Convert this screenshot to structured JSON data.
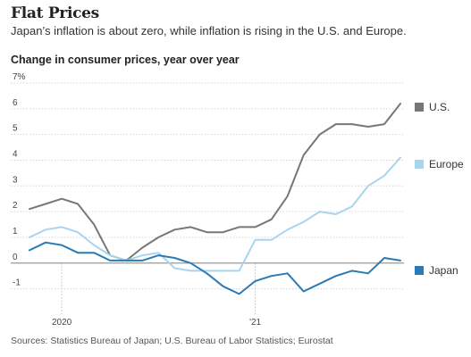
{
  "header": {
    "title": "Flat Prices",
    "subtitle": "Japan’s inflation is about zero, while inflation is rising in the U.S. and Europe.",
    "chart_heading": "Change in consumer prices, year over year"
  },
  "footer": {
    "source": "Sources: Statistics Bureau of Japan; U.S. Bureau of Labor Statistics; Eurostat"
  },
  "colors": {
    "us": "#777777",
    "europe": "#a9d4ef",
    "japan": "#2a7ab3",
    "zero_line": "#9a9a9a",
    "grid": "#d6d6d6"
  },
  "chart_data": {
    "type": "line",
    "title": "Change in consumer prices, year over year",
    "xlabel": "",
    "ylabel": "",
    "ylim": [
      -1.5,
      7
    ],
    "yticks": [
      -1,
      0,
      1,
      2,
      3,
      4,
      5,
      6,
      7
    ],
    "ytick_labels": [
      "-1",
      "0",
      "1",
      "2",
      "3",
      "4",
      "5",
      "6",
      "7%"
    ],
    "grid": true,
    "legend": "right, at line ends",
    "x": [
      "2019-11",
      "2019-12",
      "2020-01",
      "2020-02",
      "2020-03",
      "2020-04",
      "2020-05",
      "2020-06",
      "2020-07",
      "2020-08",
      "2020-09",
      "2020-10",
      "2020-11",
      "2020-12",
      "2021-01",
      "2021-02",
      "2021-03",
      "2021-04",
      "2021-05",
      "2021-06",
      "2021-07",
      "2021-08",
      "2021-09",
      "2021-10"
    ],
    "xticks": [
      "2020-01",
      "2021-01"
    ],
    "xtick_labels": [
      "2020",
      "'21"
    ],
    "series": [
      {
        "name": "U.S.",
        "color": "#777777",
        "values": [
          2.1,
          2.3,
          2.5,
          2.3,
          1.5,
          0.3,
          0.1,
          0.6,
          1.0,
          1.3,
          1.4,
          1.2,
          1.2,
          1.4,
          1.4,
          1.7,
          2.6,
          4.2,
          5.0,
          5.4,
          5.4,
          5.3,
          5.4,
          6.2
        ]
      },
      {
        "name": "Europe",
        "color": "#a9d4ef",
        "values": [
          1.0,
          1.3,
          1.4,
          1.2,
          0.7,
          0.3,
          0.1,
          0.3,
          0.4,
          -0.2,
          -0.3,
          -0.3,
          -0.3,
          -0.3,
          0.9,
          0.9,
          1.3,
          1.6,
          2.0,
          1.9,
          2.2,
          3.0,
          3.4,
          4.1
        ]
      },
      {
        "name": "Japan",
        "color": "#2a7ab3",
        "values": [
          0.5,
          0.8,
          0.7,
          0.4,
          0.4,
          0.1,
          0.1,
          0.1,
          0.3,
          0.2,
          0.0,
          -0.4,
          -0.9,
          -1.2,
          -0.7,
          -0.5,
          -0.4,
          -1.1,
          -0.8,
          -0.5,
          -0.3,
          -0.4,
          0.2,
          0.1
        ]
      }
    ]
  }
}
